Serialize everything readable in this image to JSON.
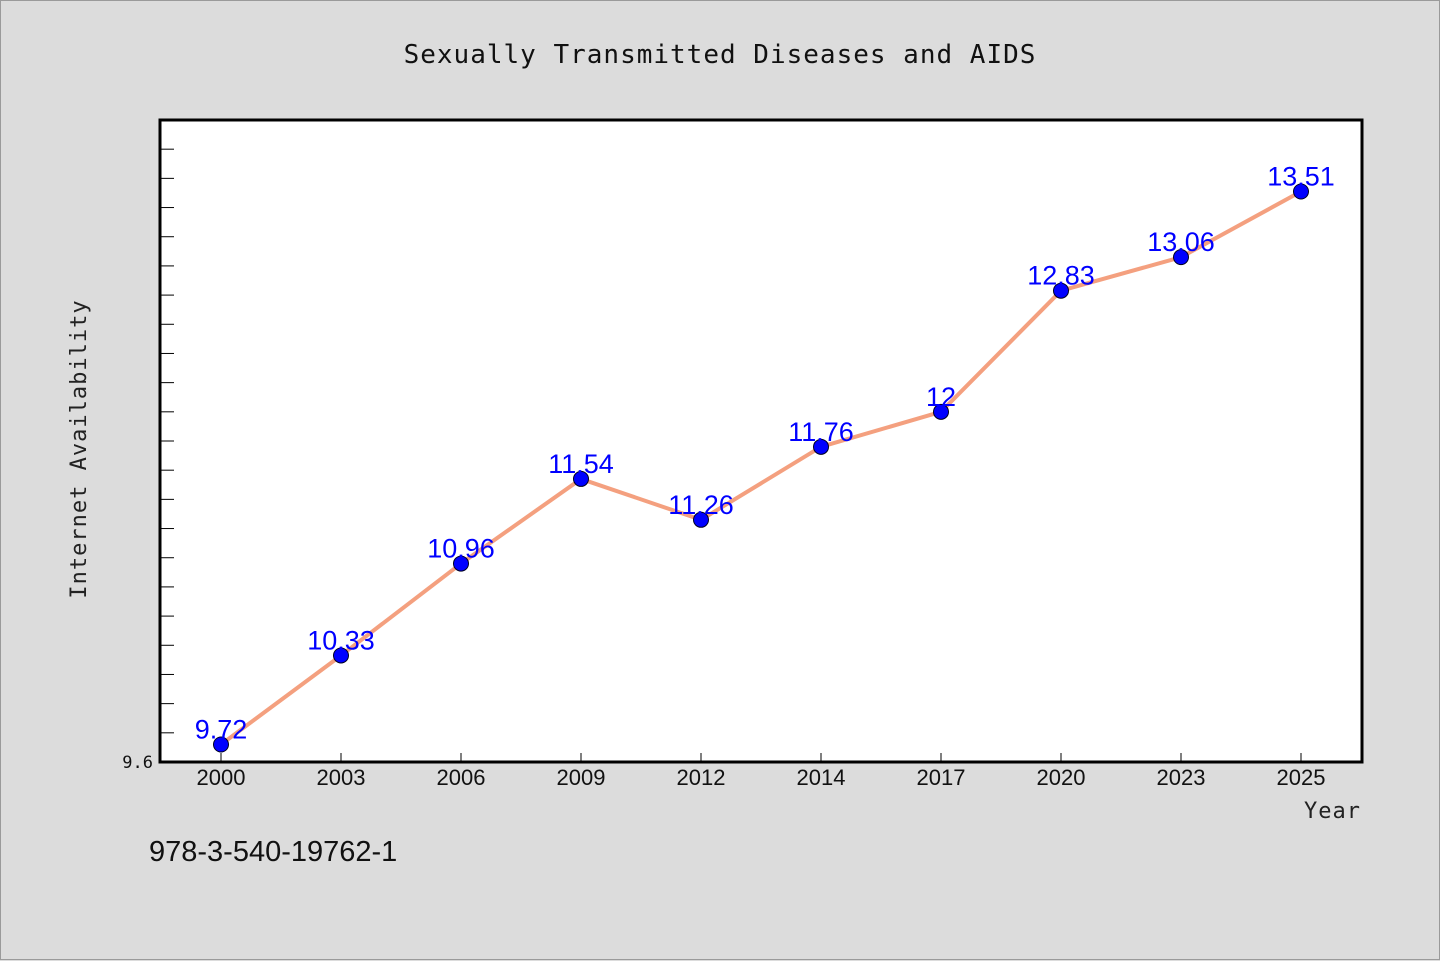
{
  "footer_text": "978-3-540-19762-1",
  "colors": {
    "background": "#dcdcdc",
    "plot_background": "#ffffff",
    "line": "#f4a07f",
    "marker": "#0000ff",
    "label": "#0000ff"
  },
  "chart_data": {
    "type": "line",
    "title": "Sexually Transmitted Diseases and AIDS",
    "xlabel": "Year",
    "ylabel": "Internet Availability",
    "categories": [
      "2000",
      "2003",
      "2006",
      "2009",
      "2012",
      "2014",
      "2017",
      "2020",
      "2023",
      "2025"
    ],
    "series": [
      {
        "values": [
          9.72,
          10.33,
          10.96,
          11.54,
          11.26,
          11.76,
          12,
          12.83,
          13.06,
          13.51
        ],
        "labels": [
          "9.72",
          "10.33",
          "10.96",
          "11.54",
          "11.26",
          "11.76",
          "12",
          "12.83",
          "13.06",
          "13.51"
        ]
      }
    ],
    "ylim": [
      9.6,
      14.0
    ],
    "ytick_labels": [
      "9.6"
    ],
    "ytick_minor_step": 0.2,
    "grid": false,
    "legend": "none"
  }
}
